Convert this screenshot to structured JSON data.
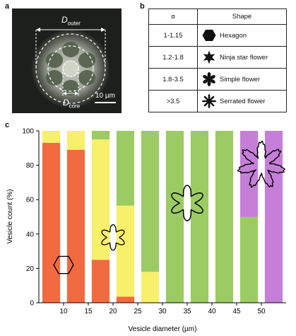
{
  "panels": {
    "a": "a",
    "b": "b",
    "c": "c"
  },
  "micrograph": {
    "outer_label_main": "D",
    "outer_label_sub": "outer",
    "core_label_main": "D",
    "core_label_sub": "core",
    "scale_bar_label": "10 µm"
  },
  "table": {
    "headers": [
      "α",
      "Shape"
    ],
    "rows": [
      {
        "alpha": "1-1.15",
        "shape": "Hexagon",
        "icon": "hexagon-icon"
      },
      {
        "alpha": "1.2-1.8",
        "shape": "Ninja star flower",
        "icon": "ninja-star-flower-icon"
      },
      {
        "alpha": "1.8-3.5",
        "shape": "Simple flower",
        "icon": "simple-flower-icon"
      },
      {
        "alpha": ">3.5",
        "shape": "Serrated flower",
        "icon": "serrated-flower-icon"
      }
    ]
  },
  "colors": {
    "hexagon": "#f26a3f",
    "ninja": "#f8ef6a",
    "simple": "#9dcb63",
    "serrated": "#c67fd9"
  },
  "chart_data": {
    "type": "bar",
    "stacked": true,
    "xlabel": "Vesicle diameter (µm)",
    "ylabel": "Vesicle count (%)",
    "xlim": [
      5,
      55
    ],
    "ylim": [
      0,
      100
    ],
    "xticks": [
      10,
      15,
      20,
      25,
      30,
      35,
      40,
      45,
      50
    ],
    "yticks": [
      0,
      20,
      40,
      60,
      80,
      100
    ],
    "bin_width": 3.6,
    "x": [
      7.5,
      12.5,
      17.5,
      22.5,
      27.5,
      32.5,
      37.5,
      42.5,
      47.5,
      52.5
    ],
    "series": [
      {
        "key": "hexagon",
        "values": [
          93,
          89,
          0,
          0,
          0,
          0,
          0,
          0,
          0,
          0
        ]
      },
      {
        "key": "ninja",
        "values": [
          7,
          11,
          0,
          0,
          0,
          0,
          0,
          0,
          0,
          0
        ]
      },
      {
        "key": "hexagon",
        "values": [
          0,
          0,
          25,
          3.5,
          0,
          0,
          0,
          0,
          0,
          0
        ]
      },
      {
        "key": "ninja",
        "values": [
          0,
          0,
          70,
          53,
          18,
          0,
          0,
          0,
          0,
          0
        ]
      },
      {
        "key": "simple",
        "values": [
          0,
          0,
          5,
          43.5,
          82,
          100,
          100,
          100,
          50,
          0
        ]
      },
      {
        "key": "serrated",
        "values": [
          0,
          0,
          0,
          0,
          0,
          0,
          0,
          0,
          50,
          100
        ]
      }
    ]
  }
}
